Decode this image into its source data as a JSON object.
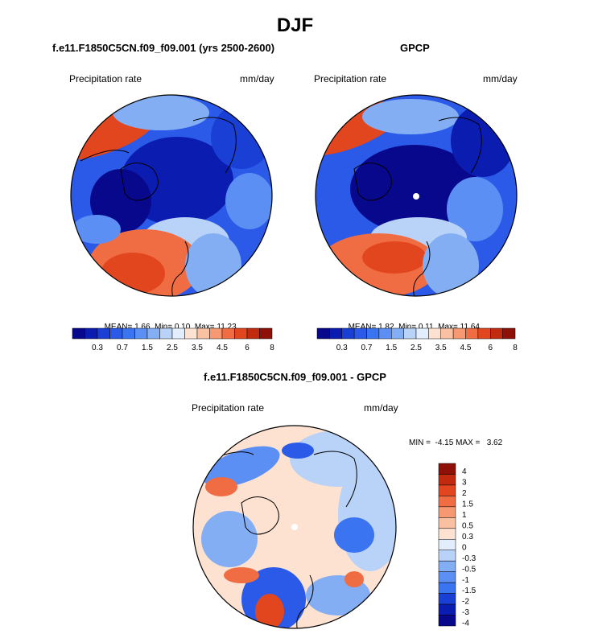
{
  "figure": {
    "title": "DJF"
  },
  "panels": {
    "model": {
      "title": "f.e11.F1850C5CN.f09_f09.001 (yrs 2500-2600)",
      "left_label": "Precipitation rate",
      "right_label": "mm/day",
      "stats": {
        "mean_label": "MEAN=",
        "mean": "1.66",
        "min_label": "Min=",
        "min": "0.10",
        "max_label": "Max=",
        "max": "11.23"
      }
    },
    "obs": {
      "title": "GPCP",
      "left_label": "Precipitation rate",
      "right_label": "mm/day",
      "stats": {
        "mean_label": "MEAN=",
        "mean": "1.82",
        "min_label": "Min=",
        "min": "0.11",
        "max_label": "Max=",
        "max": "11.64"
      }
    },
    "diff": {
      "title": "f.e11.F1850C5CN.f09_f09.001 - GPCP",
      "left_label": "Precipitation rate",
      "right_label": "mm/day",
      "stats_text": "MIN =  -4.15 MAX =   3.62"
    }
  },
  "chart_data": [
    {
      "type": "heatmap",
      "projection": "north-polar-stereographic",
      "title": "f.e11.F1850C5CN.f09_f09.001 (yrs 2500-2600)",
      "variable": "Precipitation rate",
      "units": "mm/day",
      "mean": 1.66,
      "min": 0.1,
      "max": 11.23,
      "colorbar_levels": [
        0.2,
        0.3,
        0.5,
        0.7,
        1,
        1.5,
        2,
        2.5,
        3,
        3.5,
        4,
        4.5,
        5,
        6,
        7,
        8
      ],
      "colorbar_tick_labels": [
        "0.3",
        "0.7",
        "1.5",
        "2.5",
        "3.5",
        "4.5",
        "6",
        "8"
      ]
    },
    {
      "type": "heatmap",
      "projection": "north-polar-stereographic",
      "title": "GPCP",
      "variable": "Precipitation rate",
      "units": "mm/day",
      "mean": 1.82,
      "min": 0.11,
      "max": 11.64,
      "colorbar_levels": [
        0.2,
        0.3,
        0.5,
        0.7,
        1,
        1.5,
        2,
        2.5,
        3,
        3.5,
        4,
        4.5,
        5,
        6,
        7,
        8
      ],
      "colorbar_tick_labels": [
        "0.3",
        "0.7",
        "1.5",
        "2.5",
        "3.5",
        "4.5",
        "6",
        "8"
      ]
    },
    {
      "type": "heatmap",
      "projection": "north-polar-stereographic",
      "title": "f.e11.F1850C5CN.f09_f09.001 - GPCP",
      "variable": "Precipitation rate",
      "units": "mm/day",
      "min": -4.15,
      "max": 3.62,
      "colorbar_levels": [
        4,
        3,
        2,
        1.5,
        1,
        0.5,
        0.3,
        0,
        -0.3,
        -0.5,
        -1,
        -1.5,
        -2,
        -3,
        -4
      ],
      "colorbar_tick_labels": [
        "4",
        "3",
        "2",
        "1.5",
        "1",
        "0.5",
        "0.3",
        "0",
        "-0.3",
        "-0.5",
        "-1",
        "-1.5",
        "-2",
        "-3",
        "-4"
      ]
    }
  ],
  "colors": {
    "seq": [
      "#08088c",
      "#0b1cb0",
      "#1a3fd4",
      "#2b5ae8",
      "#3b74f0",
      "#5b8ff4",
      "#84aef4",
      "#b9d2f7",
      "#e3eefc",
      "#fde2d2",
      "#f9c0a2",
      "#f69872",
      "#f06d44",
      "#e2461e",
      "#c22a10",
      "#8e1006"
    ],
    "div": [
      "#8e1006",
      "#c22a10",
      "#e2461e",
      "#f06d44",
      "#f69872",
      "#f9c0a2",
      "#fde2d2",
      "#e3eefc",
      "#b9d2f7",
      "#84aef4",
      "#5b8ff4",
      "#3b74f0",
      "#1a3fd4",
      "#0b1cb0",
      "#08088c"
    ]
  }
}
